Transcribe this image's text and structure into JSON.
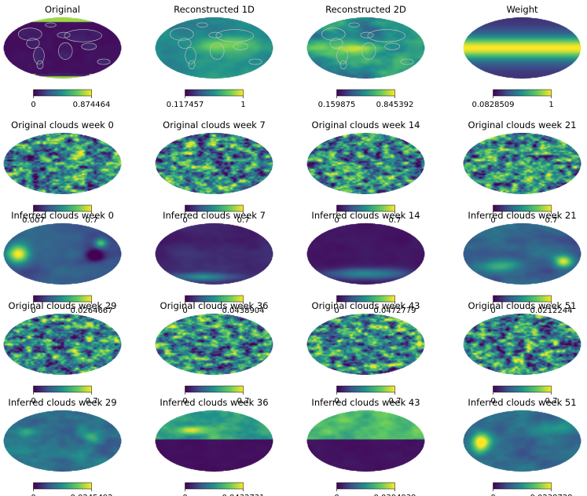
{
  "colormap": "viridis",
  "colormap_stops": [
    "#440154",
    "#3b528b",
    "#21918c",
    "#5ec962",
    "#fde725"
  ],
  "outline_color": "#c8c8c8",
  "chart_data": [
    {
      "type": "heatmap",
      "projection": "mollweide",
      "title": "Original",
      "vmin": "0",
      "vmax": "0.874464",
      "pattern": "world",
      "land": true
    },
    {
      "type": "heatmap",
      "projection": "mollweide",
      "title": "Reconstructed 1D",
      "vmin": "0.117457",
      "vmax": "1",
      "pattern": "smooth1d",
      "land": true
    },
    {
      "type": "heatmap",
      "projection": "mollweide",
      "title": "Reconstructed 2D",
      "vmin": "0.159875",
      "vmax": "0.845392",
      "pattern": "smooth2d",
      "land": true
    },
    {
      "type": "heatmap",
      "projection": "mollweide",
      "title": "Weight",
      "vmin": "0.0828509",
      "vmax": "1",
      "pattern": "weight",
      "land": false
    },
    {
      "type": "heatmap",
      "projection": "mollweide",
      "title": "Original clouds week 0",
      "vmin": "0.007",
      "vmax": "0.7",
      "pattern": "clouds",
      "land": false
    },
    {
      "type": "heatmap",
      "projection": "mollweide",
      "title": "Original clouds week 7",
      "vmin": "0",
      "vmax": "0.7",
      "pattern": "clouds",
      "land": false
    },
    {
      "type": "heatmap",
      "projection": "mollweide",
      "title": "Original clouds week 14",
      "vmin": "0",
      "vmax": "0.7",
      "pattern": "clouds",
      "land": false
    },
    {
      "type": "heatmap",
      "projection": "mollweide",
      "title": "Original clouds week 21",
      "vmin": "0",
      "vmax": "0.7",
      "pattern": "clouds",
      "land": false
    },
    {
      "type": "heatmap",
      "projection": "mollweide",
      "title": "Inferred clouds week 0",
      "vmin": "0",
      "vmax": "0.0264667",
      "pattern": "inf0",
      "land": false
    },
    {
      "type": "heatmap",
      "projection": "mollweide",
      "title": "Inferred clouds week 7",
      "vmin": "0",
      "vmax": "0.0438904",
      "pattern": "inf7",
      "land": false
    },
    {
      "type": "heatmap",
      "projection": "mollweide",
      "title": "Inferred clouds week 14",
      "vmin": "0",
      "vmax": "0.0472779",
      "pattern": "inf14",
      "land": false
    },
    {
      "type": "heatmap",
      "projection": "mollweide",
      "title": "Inferred clouds week 21",
      "vmin": "0",
      "vmax": "0.0212244",
      "pattern": "inf21",
      "land": false
    },
    {
      "type": "heatmap",
      "projection": "mollweide",
      "title": "Original clouds week 29",
      "vmin": "0",
      "vmax": "0.7",
      "pattern": "clouds",
      "land": false
    },
    {
      "type": "heatmap",
      "projection": "mollweide",
      "title": "Original clouds week 36",
      "vmin": "0",
      "vmax": "0.7",
      "pattern": "clouds",
      "land": false
    },
    {
      "type": "heatmap",
      "projection": "mollweide",
      "title": "Original clouds week 43",
      "vmin": "0",
      "vmax": "0.7",
      "pattern": "clouds",
      "land": false
    },
    {
      "type": "heatmap",
      "projection": "mollweide",
      "title": "Original clouds week 51",
      "vmin": "0",
      "vmax": "0.7",
      "pattern": "clouds",
      "land": false
    },
    {
      "type": "heatmap",
      "projection": "mollweide",
      "title": "Inferred clouds week 29",
      "vmin": "0",
      "vmax": "0.0245492",
      "pattern": "inf29",
      "land": false
    },
    {
      "type": "heatmap",
      "projection": "mollweide",
      "title": "Inferred clouds week 36",
      "vmin": "0",
      "vmax": "0.0432731",
      "pattern": "inf36",
      "land": false
    },
    {
      "type": "heatmap",
      "projection": "mollweide",
      "title": "Inferred clouds week 43",
      "vmin": "0",
      "vmax": "0.0304939",
      "pattern": "inf43",
      "land": false
    },
    {
      "type": "heatmap",
      "projection": "mollweide",
      "title": "Inferred clouds week 51",
      "vmin": "0",
      "vmax": "0.0238728",
      "pattern": "inf51",
      "land": false
    }
  ]
}
